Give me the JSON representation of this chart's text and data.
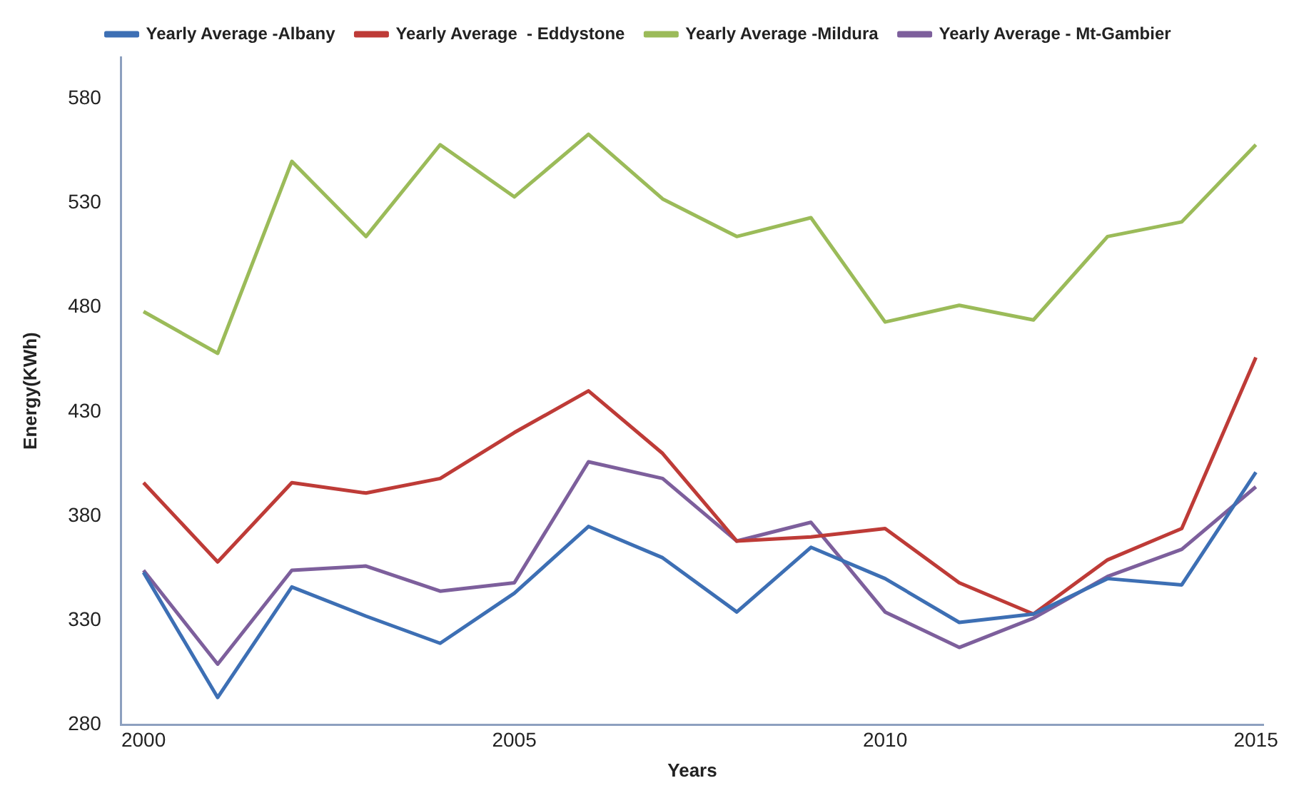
{
  "chart_data": {
    "type": "line",
    "xlabel": "Years",
    "ylabel": "Energy(KWh)",
    "x": [
      2000,
      2001,
      2002,
      2003,
      2004,
      2005,
      2006,
      2007,
      2008,
      2009,
      2010,
      2011,
      2012,
      2013,
      2014,
      2015
    ],
    "xlim": [
      1999.7,
      2015.1
    ],
    "xticks": [
      2000,
      2005,
      2010,
      2015
    ],
    "ylim": [
      280,
      600
    ],
    "yticks": [
      280,
      330,
      380,
      430,
      480,
      530,
      580
    ],
    "grid": false,
    "legend": "top",
    "marker": "none",
    "line_style": "solid",
    "series": [
      {
        "name": "Yearly Average -Albany",
        "color": "#3d6fb4",
        "values": [
          353,
          293,
          346,
          332,
          319,
          343,
          375,
          360,
          334,
          365,
          350,
          329,
          333,
          350,
          347,
          401
        ]
      },
      {
        "name": "Yearly Average  - Eddystone",
        "color": "#be3b37",
        "values": [
          396,
          358,
          396,
          391,
          398,
          420,
          440,
          410,
          368,
          370,
          374,
          348,
          333,
          359,
          374,
          456
        ]
      },
      {
        "name": "Yearly Average -Mildura",
        "color": "#9bbb59",
        "values": [
          478,
          458,
          550,
          514,
          558,
          533,
          563,
          532,
          514,
          523,
          473,
          481,
          474,
          514,
          521,
          558
        ]
      },
      {
        "name": "Yearly Average - Mt-Gambier",
        "color": "#7d5f9c",
        "values": [
          354,
          309,
          354,
          356,
          344,
          348,
          406,
          398,
          368,
          377,
          334,
          317,
          331,
          351,
          364,
          394
        ]
      }
    ]
  }
}
